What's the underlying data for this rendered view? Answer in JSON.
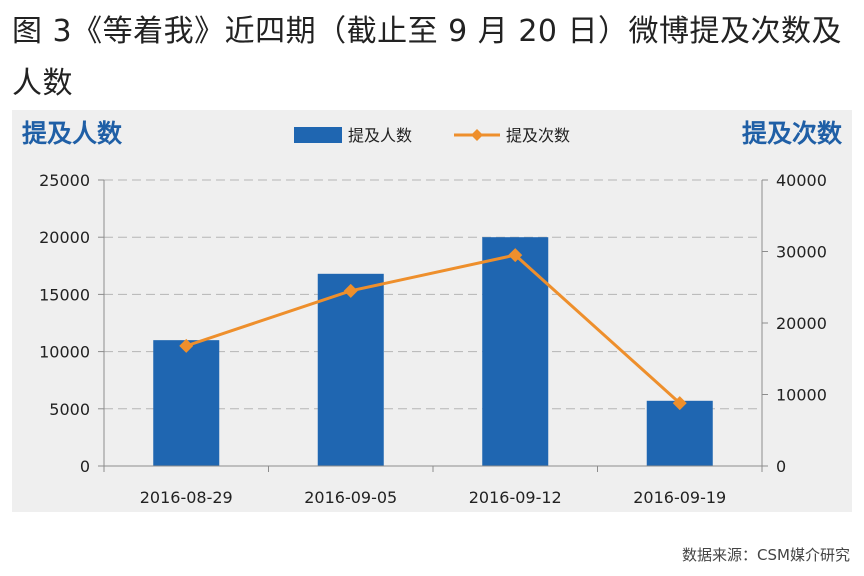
{
  "page_title": "图 3《等着我》近四期（截止至 9 月 20 日）微博提及次数及人数",
  "source_note": "数据来源：CSM媒介研究",
  "colors": {
    "bar": "#1f66b1",
    "line": "#ee8f2c",
    "accent_text": "#1f5fa6",
    "panel": "#efefef"
  },
  "chart_data": {
    "type": "bar",
    "categories": [
      "2016-08-29",
      "2016-09-05",
      "2016-09-12",
      "2016-09-19"
    ],
    "series": [
      {
        "name": "提及人数",
        "type": "bar",
        "axis": "left",
        "values": [
          11000,
          16800,
          20000,
          5700
        ]
      },
      {
        "name": "提及次数",
        "type": "line",
        "axis": "right",
        "values": [
          16800,
          24500,
          29500,
          8800
        ]
      }
    ],
    "ylabel_left": "提及人数",
    "ylabel_right": "提及次数",
    "ylim_left": [
      0,
      25000
    ],
    "ylim_right": [
      0,
      40000
    ],
    "yticks_left": [
      "25000",
      "20000",
      "15000",
      "10000",
      "5000",
      "0"
    ],
    "yticks_right": [
      "40000",
      "30000",
      "20000",
      "10000",
      "0"
    ],
    "grid": true,
    "legend": "top-center"
  }
}
